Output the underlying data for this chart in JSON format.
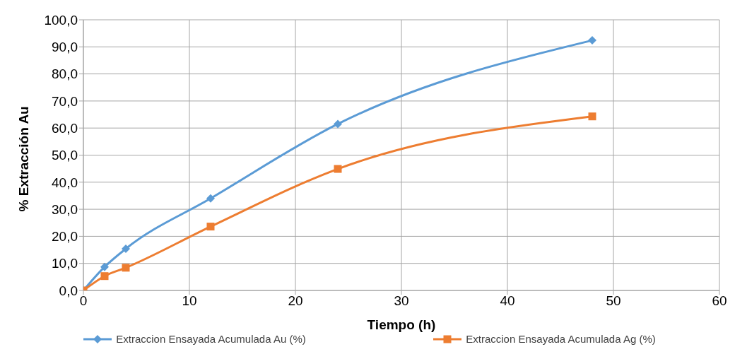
{
  "chart_data": {
    "type": "line",
    "xlabel": "Tiempo (h)",
    "ylabel": "% Extracción Au",
    "x": [
      0,
      2,
      4,
      12,
      24,
      48
    ],
    "series": [
      {
        "name": "Extraccion Ensayada Acumulada Au (%)",
        "color": "#5b9bd5",
        "marker": "diamond",
        "values": [
          0,
          8.7,
          15.4,
          34,
          61.5,
          92.4
        ]
      },
      {
        "name": "Extraccion Ensayada Acumulada Ag (%)",
        "color": "#ed7d31",
        "marker": "square",
        "values": [
          0,
          5.3,
          8.4,
          23.6,
          44.9,
          64.3
        ]
      }
    ],
    "xlim": [
      0,
      60
    ],
    "xticks": [
      0,
      10,
      20,
      30,
      40,
      50,
      60
    ],
    "ylim": [
      0,
      100
    ],
    "yticks": [
      {
        "value": 0,
        "label": "0,0"
      },
      {
        "value": 10,
        "label": "10,0"
      },
      {
        "value": 20,
        "label": "20,0"
      },
      {
        "value": 30,
        "label": "30,0"
      },
      {
        "value": 40,
        "label": "40,0"
      },
      {
        "value": 50,
        "label": "50,0"
      },
      {
        "value": 60,
        "label": "60,0"
      },
      {
        "value": 70,
        "label": "70,0"
      },
      {
        "value": 80,
        "label": "80,0"
      },
      {
        "value": 90,
        "label": "90,0"
      },
      {
        "value": 100,
        "label": "100,0"
      }
    ],
    "grid": true,
    "legend": "bottom",
    "line_style": "solid"
  }
}
